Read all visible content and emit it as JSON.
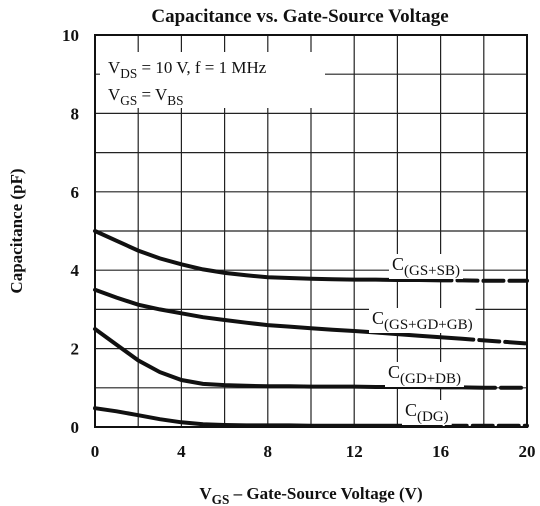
{
  "chart_data": {
    "type": "line",
    "title": "Capacitance vs. Gate-Source Voltage",
    "y_label": "Capacitance (pF)",
    "x_label": [
      "V",
      "GS",
      " – Gate-Source Voltage (V)"
    ],
    "annotations": [
      [
        "V",
        "DS",
        " = 10 V, f = 1 MHz"
      ],
      [
        "V",
        "GS",
        " = V",
        "BS"
      ]
    ],
    "x": [
      0,
      1,
      2,
      3,
      4,
      5,
      6,
      7,
      8,
      9,
      10,
      11,
      12,
      13,
      14,
      15,
      16,
      17,
      18,
      19,
      20
    ],
    "series": [
      {
        "name": "C(GS+SB)",
        "color": "#111111",
        "dash_from": 16.5,
        "values": [
          5.0,
          4.75,
          4.5,
          4.3,
          4.15,
          4.02,
          3.93,
          3.87,
          3.82,
          3.8,
          3.78,
          3.77,
          3.76,
          3.76,
          3.75,
          3.75,
          3.74,
          3.74,
          3.73,
          3.73,
          3.73
        ]
      },
      {
        "name": "C(GS+GD+GB)",
        "color": "#111111",
        "dash_from": 17.5,
        "values": [
          3.5,
          3.3,
          3.12,
          3.0,
          2.9,
          2.8,
          2.73,
          2.66,
          2.6,
          2.56,
          2.52,
          2.48,
          2.45,
          2.41,
          2.37,
          2.33,
          2.29,
          2.25,
          2.21,
          2.17,
          2.13
        ]
      },
      {
        "name": "C(GD+DB)",
        "color": "#111111",
        "dash_from": 18.5,
        "values": [
          2.5,
          2.1,
          1.7,
          1.4,
          1.2,
          1.1,
          1.07,
          1.05,
          1.04,
          1.04,
          1.03,
          1.03,
          1.03,
          1.02,
          1.02,
          1.02,
          1.01,
          1.01,
          1.0,
          1.0,
          1.0
        ]
      },
      {
        "name": "C(DG)",
        "color": "#111111",
        "dash_from": 16,
        "values": [
          0.48,
          0.4,
          0.3,
          0.2,
          0.12,
          0.07,
          0.05,
          0.04,
          0.04,
          0.04,
          0.03,
          0.03,
          0.03,
          0.03,
          0.03,
          0.03,
          0.03,
          0.03,
          0.03,
          0.03,
          0.03
        ]
      }
    ],
    "xlim": [
      0,
      20
    ],
    "xticks": [
      0,
      4,
      8,
      12,
      16,
      20
    ],
    "x_minor_ticks": [
      2,
      6,
      10,
      14,
      18
    ],
    "ylim": [
      0,
      10
    ],
    "yticks": [
      0,
      2,
      4,
      6,
      8,
      10
    ],
    "y_minor_ticks": [
      1,
      3,
      5,
      7,
      9
    ],
    "grid": true
  }
}
